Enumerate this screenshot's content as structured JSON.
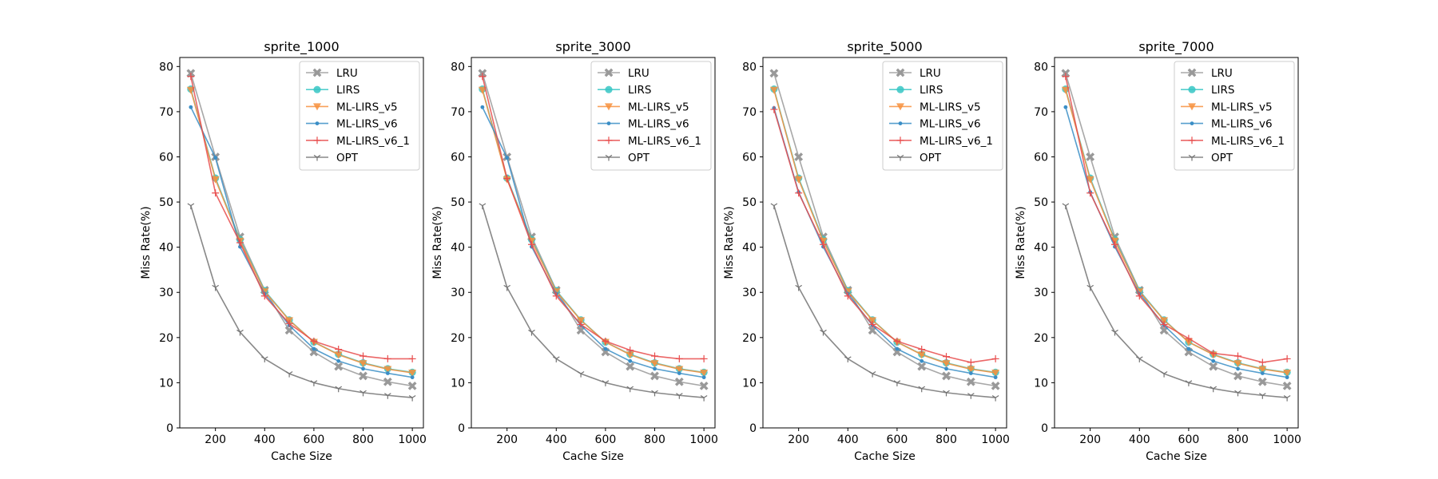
{
  "figure": {
    "legend_location": "upper right"
  },
  "chart_data": [
    {
      "type": "line",
      "title": "sprite_1000",
      "xlabel": "Cache Size",
      "ylabel": "Miss Rate(%)",
      "xlim": [
        55,
        1045
      ],
      "ylim": [
        0,
        82
      ],
      "xticks": [
        200,
        400,
        600,
        800,
        1000
      ],
      "yticks": [
        0,
        10,
        20,
        30,
        40,
        50,
        60,
        70,
        80
      ],
      "grid": false,
      "x": [
        100,
        200,
        300,
        400,
        500,
        600,
        700,
        800,
        900,
        1000
      ],
      "series": [
        {
          "name": "LRU",
          "color": "#999999",
          "marker": "X",
          "values": [
            78.5,
            60.0,
            42.3,
            30.5,
            21.6,
            16.8,
            13.6,
            11.5,
            10.2,
            9.3
          ]
        },
        {
          "name": "LIRS",
          "color": "#36c6c4",
          "marker": "o",
          "values": [
            75.0,
            55.3,
            41.7,
            30.4,
            23.9,
            19.0,
            16.3,
            14.4,
            13.1,
            12.3
          ]
        },
        {
          "name": "ML-LIRS_v5",
          "color": "#f7903d",
          "marker": "v",
          "values": [
            74.8,
            55.0,
            41.4,
            30.2,
            23.8,
            19.0,
            16.2,
            14.3,
            13.0,
            12.2
          ]
        },
        {
          "name": "ML-LIRS_v6",
          "color": "#3a8ec6",
          "marker": ".",
          "values": [
            71.0,
            59.8,
            40.1,
            29.7,
            22.7,
            17.5,
            14.8,
            13.1,
            12.1,
            11.2
          ]
        },
        {
          "name": "ML-LIRS_v6_1",
          "color": "#e84c4c",
          "marker": "+",
          "values": [
            77.8,
            52.0,
            41.0,
            29.2,
            23.1,
            19.2,
            17.4,
            15.9,
            15.3,
            15.3
          ]
        },
        {
          "name": "OPT",
          "color": "#737373",
          "marker": "1",
          "values": [
            49.2,
            31.1,
            21.2,
            15.3,
            12.0,
            10.0,
            8.7,
            7.8,
            7.2,
            6.7
          ]
        }
      ]
    },
    {
      "type": "line",
      "title": "sprite_3000",
      "xlabel": "Cache Size",
      "ylabel": "Miss Rate(%)",
      "xlim": [
        55,
        1045
      ],
      "ylim": [
        0,
        82
      ],
      "xticks": [
        200,
        400,
        600,
        800,
        1000
      ],
      "yticks": [
        0,
        10,
        20,
        30,
        40,
        50,
        60,
        70,
        80
      ],
      "grid": false,
      "x": [
        100,
        200,
        300,
        400,
        500,
        600,
        700,
        800,
        900,
        1000
      ],
      "series": [
        {
          "name": "LRU",
          "color": "#999999",
          "marker": "X",
          "values": [
            78.5,
            60.0,
            42.3,
            30.5,
            21.6,
            16.8,
            13.6,
            11.5,
            10.2,
            9.3
          ]
        },
        {
          "name": "LIRS",
          "color": "#36c6c4",
          "marker": "o",
          "values": [
            75.0,
            55.3,
            41.7,
            30.4,
            23.9,
            19.0,
            16.3,
            14.4,
            13.1,
            12.3
          ]
        },
        {
          "name": "ML-LIRS_v5",
          "color": "#f7903d",
          "marker": "v",
          "values": [
            74.8,
            55.0,
            41.4,
            30.2,
            23.8,
            19.0,
            16.2,
            14.3,
            13.0,
            12.2
          ]
        },
        {
          "name": "ML-LIRS_v6",
          "color": "#3a8ec6",
          "marker": ".",
          "values": [
            71.0,
            59.8,
            40.1,
            29.7,
            22.7,
            17.5,
            14.8,
            13.1,
            12.1,
            11.2
          ]
        },
        {
          "name": "ML-LIRS_v6_1",
          "color": "#e84c4c",
          "marker": "+",
          "values": [
            77.8,
            55.2,
            40.6,
            29.2,
            22.9,
            19.2,
            17.2,
            15.9,
            15.3,
            15.3
          ]
        },
        {
          "name": "OPT",
          "color": "#737373",
          "marker": "1",
          "values": [
            49.2,
            31.1,
            21.2,
            15.3,
            12.0,
            10.0,
            8.7,
            7.8,
            7.2,
            6.7
          ]
        }
      ]
    },
    {
      "type": "line",
      "title": "sprite_5000",
      "xlabel": "Cache Size",
      "ylabel": "Miss Rate(%)",
      "xlim": [
        55,
        1045
      ],
      "ylim": [
        0,
        82
      ],
      "xticks": [
        200,
        400,
        600,
        800,
        1000
      ],
      "yticks": [
        0,
        10,
        20,
        30,
        40,
        50,
        60,
        70,
        80
      ],
      "grid": false,
      "x": [
        100,
        200,
        300,
        400,
        500,
        600,
        700,
        800,
        900,
        1000
      ],
      "series": [
        {
          "name": "LRU",
          "color": "#999999",
          "marker": "X",
          "values": [
            78.5,
            60.0,
            42.3,
            30.5,
            21.6,
            16.8,
            13.6,
            11.5,
            10.2,
            9.3
          ]
        },
        {
          "name": "LIRS",
          "color": "#36c6c4",
          "marker": "o",
          "values": [
            75.0,
            55.3,
            41.7,
            30.4,
            23.9,
            19.0,
            16.3,
            14.4,
            13.1,
            12.3
          ]
        },
        {
          "name": "ML-LIRS_v5",
          "color": "#f7903d",
          "marker": "v",
          "values": [
            74.8,
            55.0,
            41.4,
            30.2,
            23.8,
            19.0,
            16.2,
            14.3,
            13.0,
            12.2
          ]
        },
        {
          "name": "ML-LIRS_v6",
          "color": "#3a8ec6",
          "marker": ".",
          "values": [
            70.8,
            52.2,
            40.1,
            29.7,
            22.7,
            17.5,
            14.8,
            13.1,
            12.1,
            11.2
          ]
        },
        {
          "name": "ML-LIRS_v6_1",
          "color": "#e84c4c",
          "marker": "+",
          "values": [
            70.5,
            52.0,
            40.6,
            29.2,
            22.9,
            19.2,
            17.4,
            15.8,
            14.5,
            15.3
          ]
        },
        {
          "name": "OPT",
          "color": "#737373",
          "marker": "1",
          "values": [
            49.2,
            31.1,
            21.2,
            15.3,
            12.0,
            10.0,
            8.7,
            7.8,
            7.2,
            6.7
          ]
        }
      ]
    },
    {
      "type": "line",
      "title": "sprite_7000",
      "xlabel": "Cache Size",
      "ylabel": "Miss Rate(%)",
      "xlim": [
        55,
        1045
      ],
      "ylim": [
        0,
        82
      ],
      "xticks": [
        200,
        400,
        600,
        800,
        1000
      ],
      "yticks": [
        0,
        10,
        20,
        30,
        40,
        50,
        60,
        70,
        80
      ],
      "grid": false,
      "x": [
        100,
        200,
        300,
        400,
        500,
        600,
        700,
        800,
        900,
        1000
      ],
      "series": [
        {
          "name": "LRU",
          "color": "#999999",
          "marker": "X",
          "values": [
            78.5,
            60.0,
            42.3,
            30.5,
            21.6,
            16.8,
            13.6,
            11.5,
            10.2,
            9.3
          ]
        },
        {
          "name": "LIRS",
          "color": "#36c6c4",
          "marker": "o",
          "values": [
            75.0,
            55.3,
            41.7,
            30.4,
            23.9,
            19.0,
            16.3,
            14.4,
            13.1,
            12.3
          ]
        },
        {
          "name": "ML-LIRS_v5",
          "color": "#f7903d",
          "marker": "v",
          "values": [
            74.8,
            55.0,
            41.4,
            30.2,
            23.8,
            19.0,
            16.2,
            14.3,
            13.0,
            12.2
          ]
        },
        {
          "name": "ML-LIRS_v6",
          "color": "#3a8ec6",
          "marker": ".",
          "values": [
            71.0,
            52.2,
            40.1,
            29.7,
            22.7,
            17.5,
            14.8,
            13.1,
            12.1,
            11.2
          ]
        },
        {
          "name": "ML-LIRS_v6_1",
          "color": "#e84c4c",
          "marker": "+",
          "values": [
            77.8,
            52.0,
            40.6,
            29.2,
            22.9,
            19.8,
            16.5,
            15.9,
            14.5,
            15.3
          ]
        },
        {
          "name": "OPT",
          "color": "#737373",
          "marker": "1",
          "values": [
            49.2,
            31.1,
            21.2,
            15.3,
            12.0,
            10.0,
            8.7,
            7.8,
            7.2,
            6.7
          ]
        }
      ]
    }
  ]
}
